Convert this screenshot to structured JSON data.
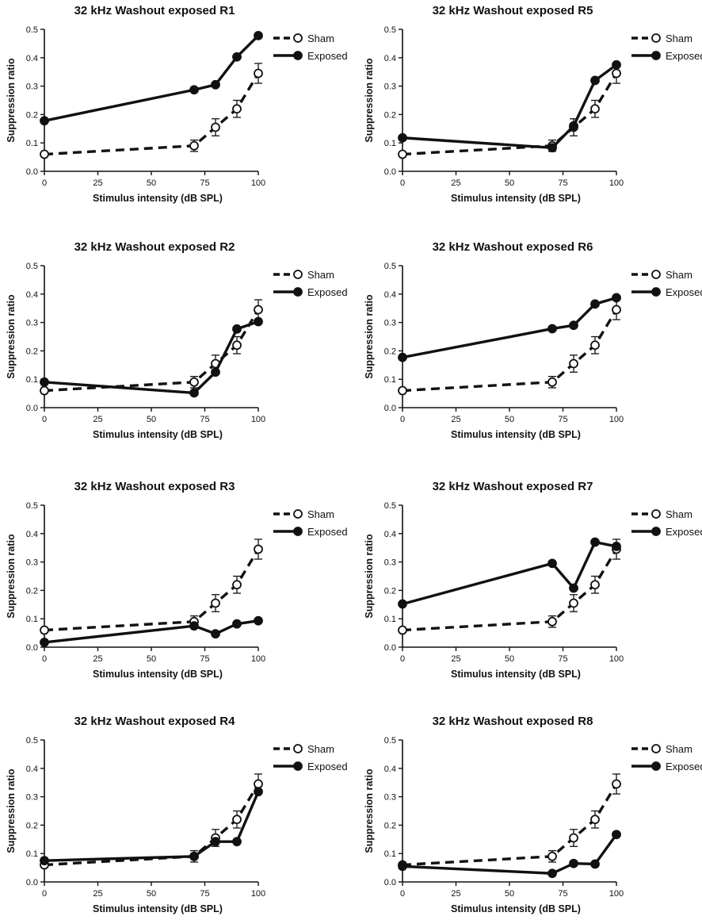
{
  "chart_data": [
    {
      "type": "line",
      "title": "32 kHz Washout exposed R1",
      "xlabel": "Stimulus intensity (dB SPL)",
      "ylabel": "Suppression ratio",
      "xlim": [
        0,
        100
      ],
      "ylim": [
        0,
        0.5
      ],
      "xticks": [
        "0",
        "25",
        "50",
        "75",
        "100"
      ],
      "yticks": [
        "0.0",
        "0.1",
        "0.2",
        "0.3",
        "0.4",
        "0.5"
      ],
      "x": [
        0,
        70,
        80,
        90,
        100
      ],
      "legend_position": "top-right",
      "series": [
        {
          "name": "Sham",
          "values": [
            0.06,
            0.09,
            0.155,
            0.22,
            0.345
          ],
          "error": [
            0.005,
            0.02,
            0.03,
            0.03,
            0.035
          ],
          "style": "dashed-open"
        },
        {
          "name": "Exposed",
          "values": [
            0.178,
            0.287,
            0.305,
            0.403,
            0.478
          ],
          "style": "solid-filled"
        }
      ]
    },
    {
      "type": "line",
      "title": "32 kHz Washout exposed R5",
      "xlabel": "Stimulus intensity (dB SPL)",
      "ylabel": "Suppression ratio",
      "xlim": [
        0,
        100
      ],
      "ylim": [
        0,
        0.5
      ],
      "xticks": [
        "0",
        "25",
        "50",
        "75",
        "100"
      ],
      "yticks": [
        "0.0",
        "0.1",
        "0.2",
        "0.3",
        "0.4",
        "0.5"
      ],
      "x": [
        0,
        70,
        80,
        90,
        100
      ],
      "legend_position": "top-right",
      "series": [
        {
          "name": "Sham",
          "values": [
            0.06,
            0.09,
            0.155,
            0.22,
            0.345
          ],
          "error": [
            0.005,
            0.02,
            0.03,
            0.03,
            0.035
          ],
          "style": "dashed-open"
        },
        {
          "name": "Exposed",
          "values": [
            0.118,
            0.083,
            0.16,
            0.32,
            0.375
          ],
          "style": "solid-filled"
        }
      ]
    },
    {
      "type": "line",
      "title": "32 kHz Washout exposed R2",
      "xlabel": "Stimulus intensity (dB SPL)",
      "ylabel": "Suppression ratio",
      "xlim": [
        0,
        100
      ],
      "ylim": [
        0,
        0.5
      ],
      "xticks": [
        "0",
        "25",
        "50",
        "75",
        "100"
      ],
      "yticks": [
        "0.0",
        "0.1",
        "0.2",
        "0.3",
        "0.4",
        "0.5"
      ],
      "x": [
        0,
        70,
        80,
        90,
        100
      ],
      "legend_position": "top-right",
      "series": [
        {
          "name": "Sham",
          "values": [
            0.06,
            0.09,
            0.155,
            0.22,
            0.345
          ],
          "error": [
            0.005,
            0.02,
            0.03,
            0.03,
            0.035
          ],
          "style": "dashed-open"
        },
        {
          "name": "Exposed",
          "values": [
            0.09,
            0.052,
            0.125,
            0.277,
            0.303
          ],
          "style": "solid-filled"
        }
      ]
    },
    {
      "type": "line",
      "title": "32 kHz Washout exposed R6",
      "xlabel": "Stimulus intensity (dB SPL)",
      "ylabel": "Suppression ratio",
      "xlim": [
        0,
        100
      ],
      "ylim": [
        0,
        0.5
      ],
      "xticks": [
        "0",
        "25",
        "50",
        "75",
        "100"
      ],
      "yticks": [
        "0.0",
        "0.1",
        "0.2",
        "0.3",
        "0.4",
        "0.5"
      ],
      "x": [
        0,
        70,
        80,
        90,
        100
      ],
      "legend_position": "top-right",
      "series": [
        {
          "name": "Sham",
          "values": [
            0.06,
            0.09,
            0.155,
            0.22,
            0.345
          ],
          "error": [
            0.005,
            0.02,
            0.03,
            0.03,
            0.035
          ],
          "style": "dashed-open"
        },
        {
          "name": "Exposed",
          "values": [
            0.177,
            0.278,
            0.29,
            0.365,
            0.387
          ],
          "style": "solid-filled"
        }
      ]
    },
    {
      "type": "line",
      "title": "32 kHz Washout exposed R3",
      "xlabel": "Stimulus intensity (dB SPL)",
      "ylabel": "Suppression ratio",
      "xlim": [
        0,
        100
      ],
      "ylim": [
        0,
        0.5
      ],
      "xticks": [
        "0",
        "25",
        "50",
        "75",
        "100"
      ],
      "yticks": [
        "0.0",
        "0.1",
        "0.2",
        "0.3",
        "0.4",
        "0.5"
      ],
      "x": [
        0,
        70,
        80,
        90,
        100
      ],
      "legend_position": "top-right",
      "series": [
        {
          "name": "Sham",
          "values": [
            0.06,
            0.09,
            0.155,
            0.22,
            0.345
          ],
          "error": [
            0.005,
            0.02,
            0.03,
            0.03,
            0.035
          ],
          "style": "dashed-open"
        },
        {
          "name": "Exposed",
          "values": [
            0.017,
            0.075,
            0.047,
            0.082,
            0.093
          ],
          "style": "solid-filled"
        }
      ]
    },
    {
      "type": "line",
      "title": "32 kHz Washout exposed R7",
      "xlabel": "Stimulus intensity (dB SPL)",
      "ylabel": "Suppression ratio",
      "xlim": [
        0,
        100
      ],
      "ylim": [
        0,
        0.5
      ],
      "xticks": [
        "0",
        "25",
        "50",
        "75",
        "100"
      ],
      "yticks": [
        "0.0",
        "0.1",
        "0.2",
        "0.3",
        "0.4",
        "0.5"
      ],
      "x": [
        0,
        70,
        80,
        90,
        100
      ],
      "legend_position": "top-right",
      "series": [
        {
          "name": "Sham",
          "values": [
            0.06,
            0.09,
            0.155,
            0.22,
            0.345
          ],
          "error": [
            0.005,
            0.02,
            0.03,
            0.03,
            0.035
          ],
          "style": "dashed-open"
        },
        {
          "name": "Exposed",
          "values": [
            0.152,
            0.295,
            0.208,
            0.37,
            0.355
          ],
          "style": "solid-filled"
        }
      ]
    },
    {
      "type": "line",
      "title": "32 kHz Washout exposed R4",
      "xlabel": "Stimulus intensity (dB SPL)",
      "ylabel": "Suppression ratio",
      "xlim": [
        0,
        100
      ],
      "ylim": [
        0,
        0.5
      ],
      "xticks": [
        "0",
        "25",
        "50",
        "75",
        "100"
      ],
      "yticks": [
        "0.0",
        "0.1",
        "0.2",
        "0.3",
        "0.4",
        "0.5"
      ],
      "x": [
        0,
        70,
        80,
        90,
        100
      ],
      "legend_position": "top-right",
      "series": [
        {
          "name": "Sham",
          "values": [
            0.06,
            0.09,
            0.155,
            0.22,
            0.345
          ],
          "error": [
            0.005,
            0.02,
            0.03,
            0.03,
            0.035
          ],
          "style": "dashed-open"
        },
        {
          "name": "Exposed",
          "values": [
            0.075,
            0.09,
            0.142,
            0.142,
            0.318
          ],
          "style": "solid-filled"
        }
      ]
    },
    {
      "type": "line",
      "title": "32 kHz Washout exposed R8",
      "xlabel": "Stimulus intensity (dB SPL)",
      "ylabel": "Suppression ratio",
      "xlim": [
        0,
        100
      ],
      "ylim": [
        0,
        0.5
      ],
      "xticks": [
        "0",
        "25",
        "50",
        "75",
        "100"
      ],
      "yticks": [
        "0.0",
        "0.1",
        "0.2",
        "0.3",
        "0.4",
        "0.5"
      ],
      "x": [
        0,
        70,
        80,
        90,
        100
      ],
      "legend_position": "top-right",
      "series": [
        {
          "name": "Sham",
          "values": [
            0.06,
            0.09,
            0.155,
            0.22,
            0.345
          ],
          "error": [
            0.005,
            0.02,
            0.03,
            0.03,
            0.035
          ],
          "style": "dashed-open"
        },
        {
          "name": "Exposed",
          "values": [
            0.055,
            0.03,
            0.065,
            0.063,
            0.167
          ],
          "style": "solid-filled"
        }
      ]
    }
  ]
}
